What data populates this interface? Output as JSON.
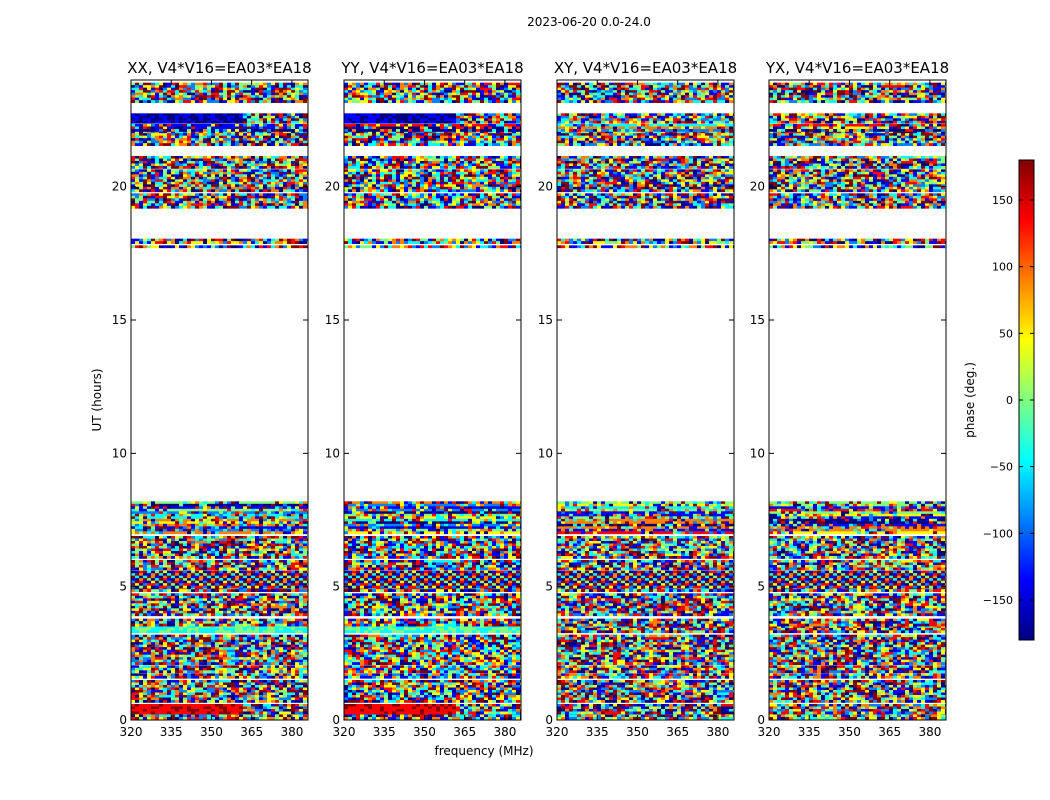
{
  "chart_data": {
    "type": "heatmap",
    "title": "2023-06-20 0.0-24.0",
    "xlabel": "frequency (MHz)",
    "ylabel": "UT (hours)",
    "xlim": [
      320,
      386
    ],
    "ylim": [
      0,
      24
    ],
    "xticks": [
      320,
      335,
      350,
      365,
      380
    ],
    "yticks": [
      0,
      5,
      10,
      15,
      20
    ],
    "panels": [
      {
        "title": "XX, V4*V16=EA03*EA18",
        "product": "XX"
      },
      {
        "title": "YY, V4*V16=EA03*EA18",
        "product": "YY"
      },
      {
        "title": "XY, V4*V16=EA03*EA18",
        "product": "XY"
      },
      {
        "title": "YX, V4*V16=EA03*EA18",
        "product": "YX"
      }
    ],
    "data_blocks_ut_hours": [
      [
        0.0,
        0.3,
        "noisy"
      ],
      [
        0.3,
        0.6,
        "coherent-high"
      ],
      [
        0.7,
        1.5,
        "noisy"
      ],
      [
        1.6,
        1.75,
        "noisy"
      ],
      [
        1.85,
        2.05,
        "noisy"
      ],
      [
        2.1,
        3.2,
        "noisy"
      ],
      [
        3.3,
        3.55,
        "coherent-low"
      ],
      [
        3.6,
        3.8,
        "noisy"
      ],
      [
        3.95,
        4.75,
        "noisy"
      ],
      [
        4.85,
        5.0,
        "noisy"
      ],
      [
        5.0,
        5.6,
        "fringes"
      ],
      [
        5.7,
        6.0,
        "noisy"
      ],
      [
        6.1,
        6.9,
        "noisy"
      ],
      [
        7.0,
        8.2,
        "striped"
      ],
      [
        17.75,
        17.8,
        "noisy"
      ],
      [
        17.95,
        18.05,
        "noisy"
      ],
      [
        19.2,
        19.75,
        "noisy"
      ],
      [
        19.85,
        20.65,
        "noisy"
      ],
      [
        20.75,
        21.15,
        "noisy"
      ],
      [
        21.55,
        22.1,
        "noisy"
      ],
      [
        22.15,
        22.35,
        "striped"
      ],
      [
        22.45,
        22.75,
        "coherent-dark"
      ],
      [
        23.2,
        23.9,
        "noisy"
      ]
    ],
    "colorbar": {
      "label": "phase (deg.)",
      "range": [
        -180,
        180
      ],
      "ticks": [
        -150,
        -100,
        -50,
        0,
        50,
        100,
        150
      ],
      "tick_labels": [
        "−150",
        "−100",
        "−50",
        "0",
        "50",
        "100",
        "150"
      ],
      "colormap": "jet"
    }
  },
  "colors": {
    "jet": [
      "#000080",
      "#0000ff",
      "#0080ff",
      "#00ffff",
      "#80ff80",
      "#ffff00",
      "#ff8000",
      "#ff0000",
      "#800000"
    ],
    "frame": "#000000",
    "background": "#ffffff"
  }
}
